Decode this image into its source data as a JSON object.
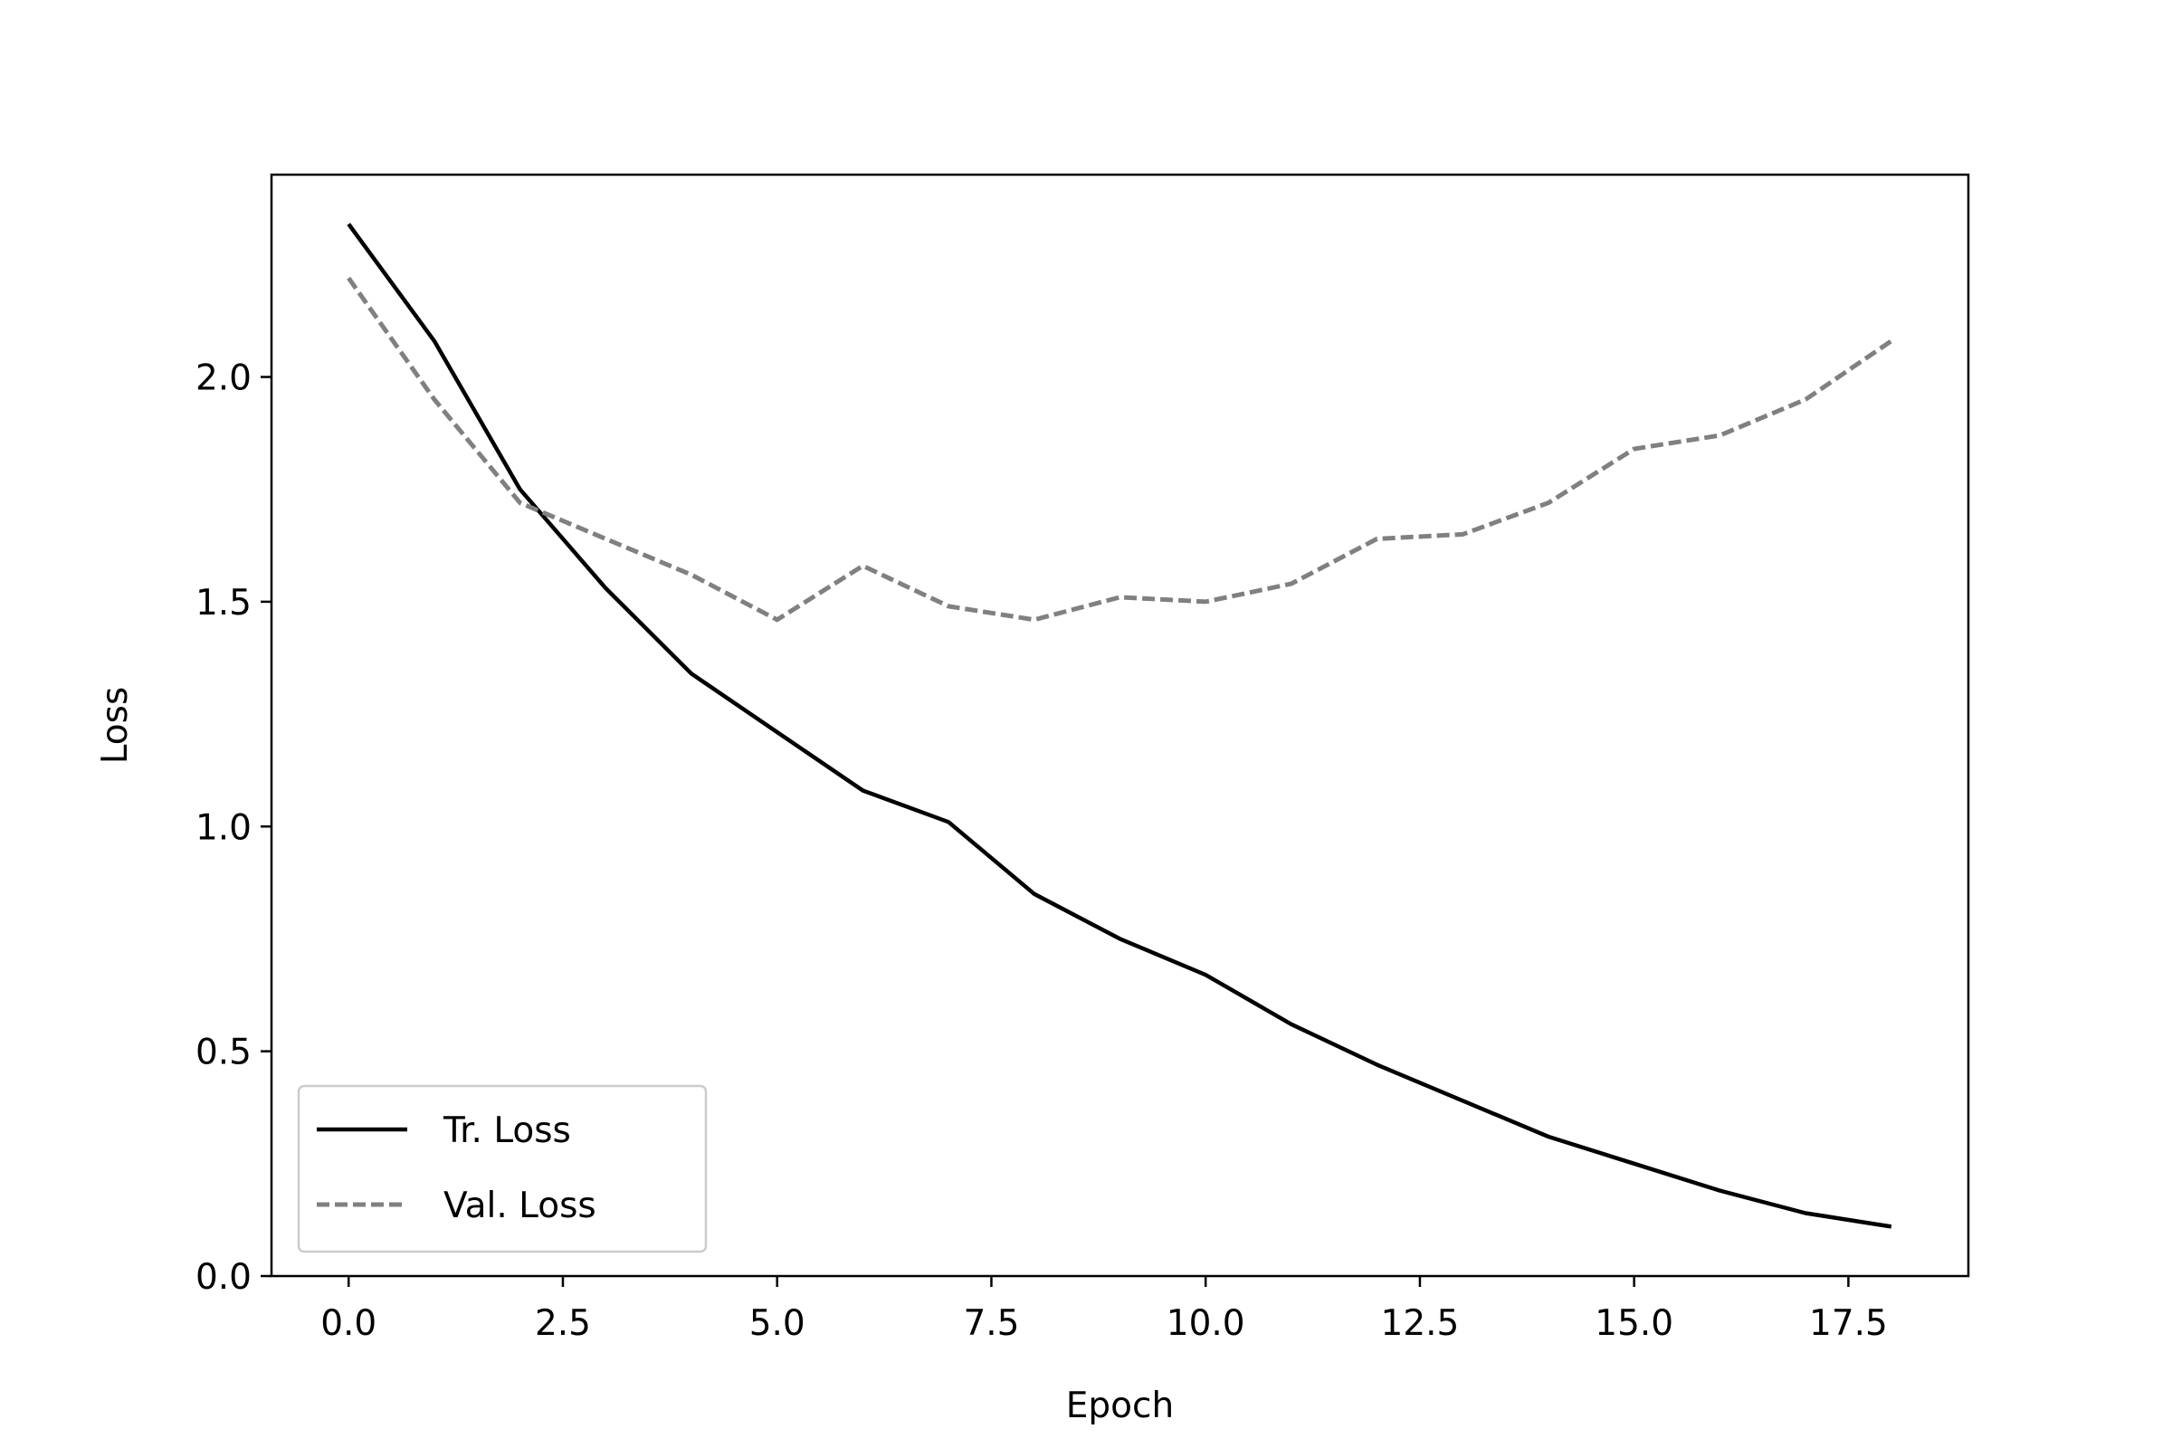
{
  "chart_data": {
    "type": "line",
    "title": "",
    "xlabel": "Epoch",
    "ylabel": "Loss",
    "xlim": [
      -0.9,
      18.9
    ],
    "ylim": [
      0,
      2.45
    ],
    "xticks": [
      0.0,
      2.5,
      5.0,
      7.5,
      10.0,
      12.5,
      15.0,
      17.5
    ],
    "xtick_labels": [
      "0.0",
      "2.5",
      "5.0",
      "7.5",
      "10.0",
      "12.5",
      "15.0",
      "17.5"
    ],
    "yticks": [
      0.0,
      0.5,
      1.0,
      1.5,
      2.0
    ],
    "ytick_labels": [
      "0.0",
      "0.5",
      "1.0",
      "1.5",
      "2.0"
    ],
    "grid": false,
    "legend_position": "lower-left",
    "x": [
      0,
      1,
      2,
      3,
      4,
      5,
      6,
      7,
      8,
      9,
      10,
      11,
      12,
      13,
      14,
      15,
      16,
      17,
      18
    ],
    "series": [
      {
        "name": "Tr. Loss",
        "color": "#000000",
        "style": "solid",
        "values": [
          2.34,
          2.08,
          1.75,
          1.53,
          1.34,
          1.21,
          1.08,
          1.01,
          0.85,
          0.75,
          0.67,
          0.56,
          0.47,
          0.39,
          0.31,
          0.25,
          0.19,
          0.14,
          0.11
        ]
      },
      {
        "name": "Val. Loss",
        "color": "#808080",
        "style": "dashed",
        "values": [
          2.22,
          1.95,
          1.72,
          1.64,
          1.56,
          1.46,
          1.58,
          1.49,
          1.46,
          1.51,
          1.5,
          1.54,
          1.64,
          1.65,
          1.72,
          1.84,
          1.87,
          1.95,
          2.08
        ]
      }
    ]
  }
}
